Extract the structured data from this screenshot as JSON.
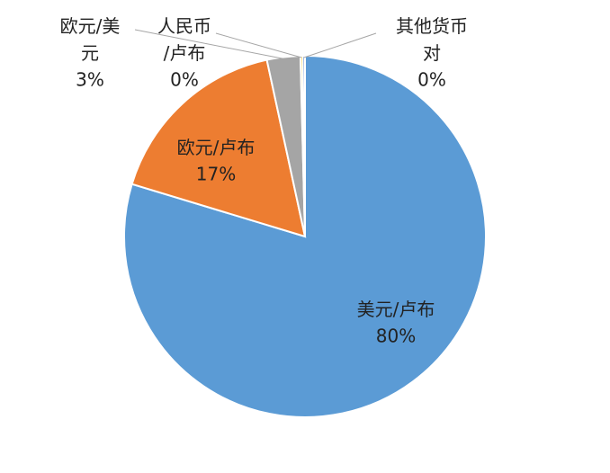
{
  "chart_data": {
    "type": "pie",
    "categories": [
      "美元/卢布",
      "欧元/卢布",
      "欧元/美元",
      "人民币/卢布",
      "其他货币对"
    ],
    "values": [
      80,
      17,
      3,
      0.2,
      0.2
    ],
    "value_labels": [
      "80%",
      "17%",
      "3%",
      "0%",
      "0%"
    ],
    "colors": [
      "#5b9bd5",
      "#ed7d31",
      "#a5a5a5",
      "#ffc000",
      "#4472c4"
    ]
  }
}
